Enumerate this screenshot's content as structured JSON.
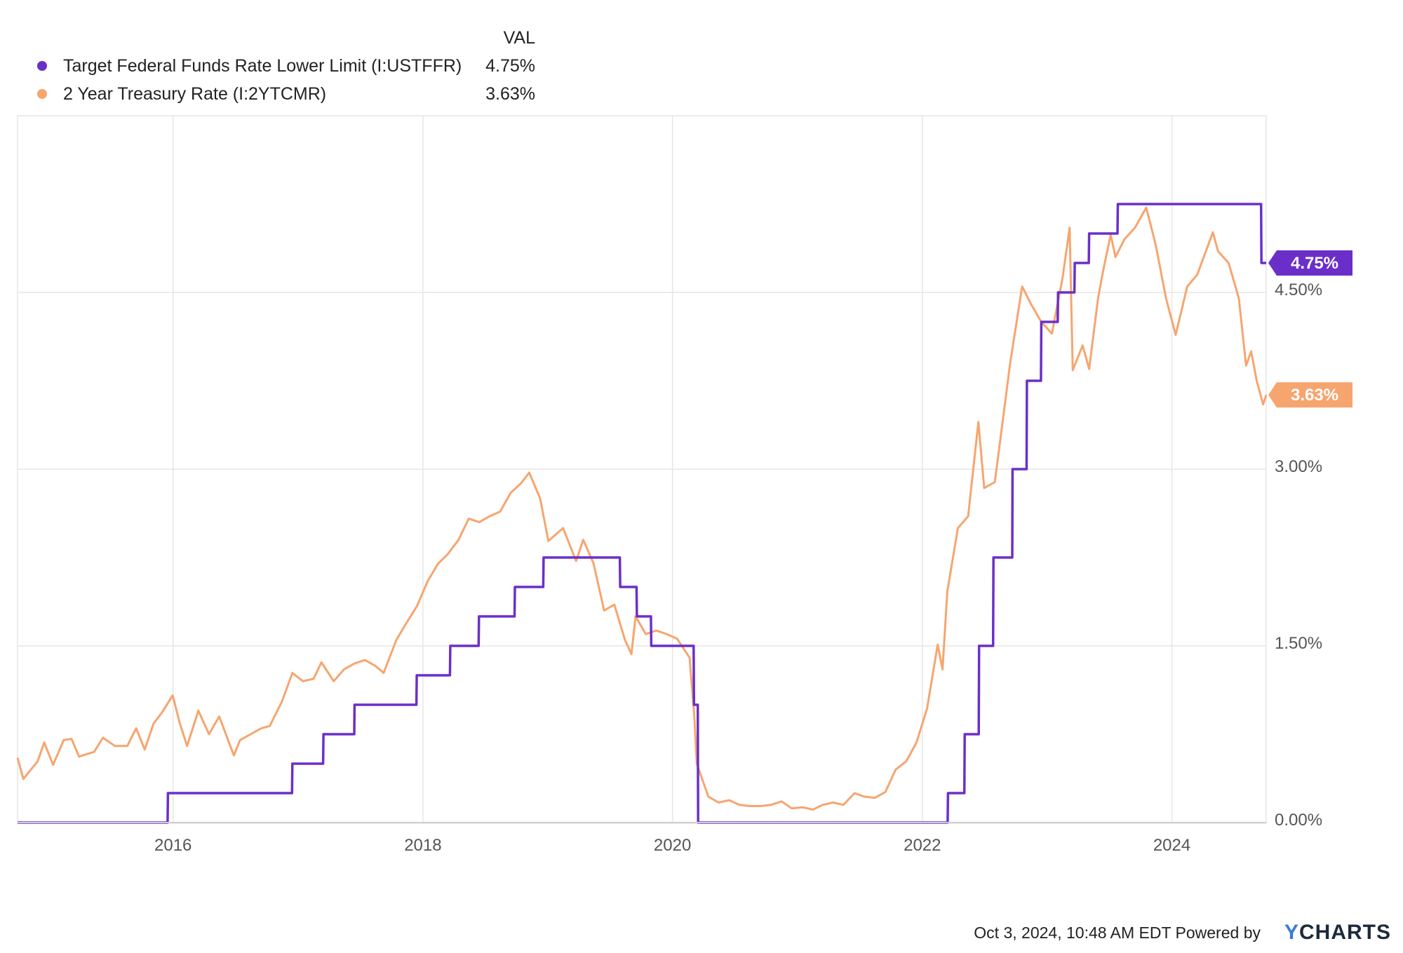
{
  "legend": {
    "value_header": "VAL",
    "items": [
      {
        "label": "Target Federal Funds Rate Lower Limit (I:USTFFR)",
        "value": "4.75%",
        "color": "#6b2fc9"
      },
      {
        "label": "2 Year Treasury Rate (I:2YTCMR)",
        "value": "3.63%",
        "color": "#f6a56f"
      }
    ]
  },
  "footer": {
    "timestamp": "Oct 3, 2024, 10:48 AM EDT Powered by",
    "brand_y": "Y",
    "brand_rest": "CHARTS"
  },
  "colors": {
    "series1": "#6b2fc9",
    "series2": "#f6a56f",
    "brand_accent": "#3b7bd4",
    "grid": "#e6e6e6"
  },
  "chart_data": {
    "type": "line",
    "x_axis": {
      "type": "date",
      "range": [
        "2014-10-03",
        "2024-10-03"
      ],
      "tick_labels": [
        "2016",
        "2018",
        "2020",
        "2022",
        "2024"
      ],
      "tick_values": [
        "2016-01-01",
        "2018-01-01",
        "2020-01-01",
        "2022-01-01",
        "2024-01-01"
      ]
    },
    "y_axis": {
      "position": "right",
      "range": [
        0,
        6
      ],
      "unit": "%",
      "tick_labels": [
        "0.00%",
        "1.50%",
        "3.00%",
        "4.50%"
      ],
      "tick_values": [
        0,
        1.5,
        3,
        4.5
      ]
    },
    "grid": true,
    "legend_position": "top-left",
    "series": [
      {
        "name": "Target Federal Funds Rate Lower Limit (I:USTFFR)",
        "last_value": 4.75,
        "last_label": "4.75%",
        "points": [
          [
            "2014-10-03",
            0
          ],
          [
            "2015-12-16",
            0
          ],
          [
            "2015-12-17",
            0.25
          ],
          [
            "2016-12-14",
            0.25
          ],
          [
            "2016-12-15",
            0.5
          ],
          [
            "2017-03-15",
            0.5
          ],
          [
            "2017-03-16",
            0.75
          ],
          [
            "2017-06-14",
            0.75
          ],
          [
            "2017-06-15",
            1.0
          ],
          [
            "2017-12-13",
            1.0
          ],
          [
            "2017-12-14",
            1.25
          ],
          [
            "2018-03-21",
            1.25
          ],
          [
            "2018-03-22",
            1.5
          ],
          [
            "2018-06-13",
            1.5
          ],
          [
            "2018-06-14",
            1.75
          ],
          [
            "2018-09-26",
            1.75
          ],
          [
            "2018-09-27",
            2.0
          ],
          [
            "2018-12-19",
            2.0
          ],
          [
            "2018-12-20",
            2.25
          ],
          [
            "2019-07-31",
            2.25
          ],
          [
            "2019-08-01",
            2.0
          ],
          [
            "2019-09-18",
            2.0
          ],
          [
            "2019-09-19",
            1.75
          ],
          [
            "2019-10-30",
            1.75
          ],
          [
            "2019-10-31",
            1.5
          ],
          [
            "2020-03-03",
            1.5
          ],
          [
            "2020-03-04",
            1.0
          ],
          [
            "2020-03-15",
            1.0
          ],
          [
            "2020-03-16",
            0
          ],
          [
            "2022-03-16",
            0
          ],
          [
            "2022-03-17",
            0.25
          ],
          [
            "2022-05-04",
            0.25
          ],
          [
            "2022-05-05",
            0.75
          ],
          [
            "2022-06-15",
            0.75
          ],
          [
            "2022-06-16",
            1.5
          ],
          [
            "2022-07-27",
            1.5
          ],
          [
            "2022-07-28",
            2.25
          ],
          [
            "2022-09-21",
            2.25
          ],
          [
            "2022-09-22",
            3.0
          ],
          [
            "2022-11-02",
            3.0
          ],
          [
            "2022-11-03",
            3.75
          ],
          [
            "2022-12-14",
            3.75
          ],
          [
            "2022-12-15",
            4.25
          ],
          [
            "2023-02-01",
            4.25
          ],
          [
            "2023-02-02",
            4.5
          ],
          [
            "2023-03-22",
            4.5
          ],
          [
            "2023-03-23",
            4.75
          ],
          [
            "2023-05-03",
            4.75
          ],
          [
            "2023-05-04",
            5.0
          ],
          [
            "2023-07-26",
            5.0
          ],
          [
            "2023-07-27",
            5.25
          ],
          [
            "2024-09-18",
            5.25
          ],
          [
            "2024-09-19",
            4.75
          ],
          [
            "2024-10-03",
            4.75
          ]
        ]
      },
      {
        "name": "2 Year Treasury Rate (I:2YTCMR)",
        "last_value": 3.63,
        "last_label": "3.63%",
        "points": [
          [
            "2014-10-03",
            0.55
          ],
          [
            "2014-10-20",
            0.37
          ],
          [
            "2014-12-01",
            0.52
          ],
          [
            "2014-12-20",
            0.68
          ],
          [
            "2015-01-15",
            0.49
          ],
          [
            "2015-02-15",
            0.7
          ],
          [
            "2015-03-10",
            0.71
          ],
          [
            "2015-04-01",
            0.56
          ],
          [
            "2015-05-15",
            0.6
          ],
          [
            "2015-06-10",
            0.72
          ],
          [
            "2015-07-15",
            0.65
          ],
          [
            "2015-08-20",
            0.65
          ],
          [
            "2015-09-15",
            0.8
          ],
          [
            "2015-10-10",
            0.62
          ],
          [
            "2015-11-05",
            0.84
          ],
          [
            "2015-12-01",
            0.94
          ],
          [
            "2015-12-31",
            1.08
          ],
          [
            "2016-01-20",
            0.85
          ],
          [
            "2016-02-11",
            0.65
          ],
          [
            "2016-03-15",
            0.95
          ],
          [
            "2016-04-15",
            0.75
          ],
          [
            "2016-05-15",
            0.9
          ],
          [
            "2016-06-27",
            0.57
          ],
          [
            "2016-07-15",
            0.7
          ],
          [
            "2016-08-15",
            0.75
          ],
          [
            "2016-09-15",
            0.8
          ],
          [
            "2016-10-10",
            0.82
          ],
          [
            "2016-11-15",
            1.03
          ],
          [
            "2016-12-15",
            1.27
          ],
          [
            "2017-01-15",
            1.2
          ],
          [
            "2017-02-15",
            1.22
          ],
          [
            "2017-03-10",
            1.36
          ],
          [
            "2017-04-15",
            1.2
          ],
          [
            "2017-05-15",
            1.3
          ],
          [
            "2017-06-15",
            1.35
          ],
          [
            "2017-07-15",
            1.38
          ],
          [
            "2017-08-15",
            1.33
          ],
          [
            "2017-09-08",
            1.27
          ],
          [
            "2017-10-15",
            1.55
          ],
          [
            "2017-11-15",
            1.7
          ],
          [
            "2017-12-15",
            1.84
          ],
          [
            "2018-01-15",
            2.05
          ],
          [
            "2018-02-15",
            2.2
          ],
          [
            "2018-03-15",
            2.28
          ],
          [
            "2018-04-15",
            2.4
          ],
          [
            "2018-05-15",
            2.58
          ],
          [
            "2018-06-15",
            2.55
          ],
          [
            "2018-07-15",
            2.6
          ],
          [
            "2018-08-15",
            2.64
          ],
          [
            "2018-09-15",
            2.8
          ],
          [
            "2018-10-15",
            2.88
          ],
          [
            "2018-11-08",
            2.97
          ],
          [
            "2018-12-10",
            2.75
          ],
          [
            "2019-01-03",
            2.39
          ],
          [
            "2019-02-15",
            2.5
          ],
          [
            "2019-03-25",
            2.22
          ],
          [
            "2019-04-15",
            2.4
          ],
          [
            "2019-05-15",
            2.2
          ],
          [
            "2019-06-15",
            1.8
          ],
          [
            "2019-07-15",
            1.85
          ],
          [
            "2019-08-15",
            1.55
          ],
          [
            "2019-09-03",
            1.43
          ],
          [
            "2019-09-15",
            1.75
          ],
          [
            "2019-10-15",
            1.6
          ],
          [
            "2019-11-15",
            1.63
          ],
          [
            "2019-12-15",
            1.6
          ],
          [
            "2020-01-15",
            1.56
          ],
          [
            "2020-02-20",
            1.4
          ],
          [
            "2020-03-05",
            0.9
          ],
          [
            "2020-03-12",
            0.5
          ],
          [
            "2020-04-15",
            0.22
          ],
          [
            "2020-05-15",
            0.17
          ],
          [
            "2020-06-15",
            0.19
          ],
          [
            "2020-07-15",
            0.15
          ],
          [
            "2020-08-15",
            0.14
          ],
          [
            "2020-09-15",
            0.14
          ],
          [
            "2020-10-15",
            0.15
          ],
          [
            "2020-11-15",
            0.18
          ],
          [
            "2020-12-15",
            0.12
          ],
          [
            "2021-01-15",
            0.13
          ],
          [
            "2021-02-15",
            0.11
          ],
          [
            "2021-03-15",
            0.15
          ],
          [
            "2021-04-15",
            0.17
          ],
          [
            "2021-05-15",
            0.15
          ],
          [
            "2021-06-17",
            0.25
          ],
          [
            "2021-07-15",
            0.22
          ],
          [
            "2021-08-15",
            0.21
          ],
          [
            "2021-09-15",
            0.26
          ],
          [
            "2021-10-15",
            0.45
          ],
          [
            "2021-11-15",
            0.52
          ],
          [
            "2021-12-15",
            0.68
          ],
          [
            "2022-01-15",
            0.97
          ],
          [
            "2022-02-15",
            1.51
          ],
          [
            "2022-03-01",
            1.3
          ],
          [
            "2022-03-15",
            1.96
          ],
          [
            "2022-04-15",
            2.5
          ],
          [
            "2022-05-15",
            2.6
          ],
          [
            "2022-06-14",
            3.4
          ],
          [
            "2022-07-01",
            2.84
          ],
          [
            "2022-08-01",
            2.89
          ],
          [
            "2022-08-15",
            3.2
          ],
          [
            "2022-09-15",
            3.9
          ],
          [
            "2022-10-20",
            4.55
          ],
          [
            "2022-11-15",
            4.4
          ],
          [
            "2022-12-15",
            4.25
          ],
          [
            "2023-01-15",
            4.15
          ],
          [
            "2023-02-15",
            4.62
          ],
          [
            "2023-03-08",
            5.05
          ],
          [
            "2023-03-17",
            3.84
          ],
          [
            "2023-04-15",
            4.05
          ],
          [
            "2023-05-04",
            3.85
          ],
          [
            "2023-05-30",
            4.45
          ],
          [
            "2023-06-15",
            4.7
          ],
          [
            "2023-07-06",
            4.99
          ],
          [
            "2023-07-20",
            4.8
          ],
          [
            "2023-08-15",
            4.95
          ],
          [
            "2023-09-15",
            5.05
          ],
          [
            "2023-10-18",
            5.22
          ],
          [
            "2023-11-15",
            4.9
          ],
          [
            "2023-12-15",
            4.45
          ],
          [
            "2024-01-12",
            4.14
          ],
          [
            "2024-02-15",
            4.55
          ],
          [
            "2024-03-15",
            4.65
          ],
          [
            "2024-04-30",
            5.01
          ],
          [
            "2024-05-15",
            4.85
          ],
          [
            "2024-06-15",
            4.75
          ],
          [
            "2024-07-15",
            4.45
          ],
          [
            "2024-08-05",
            3.88
          ],
          [
            "2024-08-20",
            4.0
          ],
          [
            "2024-09-05",
            3.75
          ],
          [
            "2024-09-24",
            3.55
          ],
          [
            "2024-10-03",
            3.63
          ]
        ]
      }
    ]
  }
}
